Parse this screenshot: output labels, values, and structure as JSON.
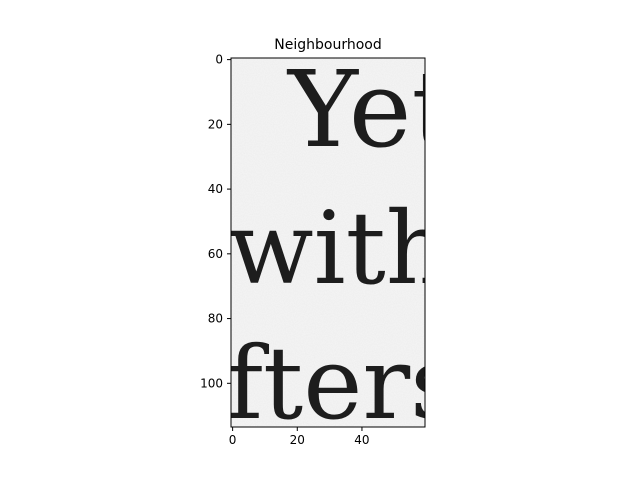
{
  "chart_data": {
    "type": "image",
    "title": "Neighbourhood",
    "image_shape": [
      114,
      60
    ],
    "colormap": "gray",
    "x_ticks": [
      0,
      20,
      40
    ],
    "y_ticks": [
      0,
      20,
      40,
      60,
      80,
      100
    ],
    "xlim": [
      -0.5,
      59.5
    ],
    "ylim": [
      113.5,
      -0.5
    ],
    "image_text_lines": [
      "Yet",
      "with",
      "fters"
    ]
  }
}
